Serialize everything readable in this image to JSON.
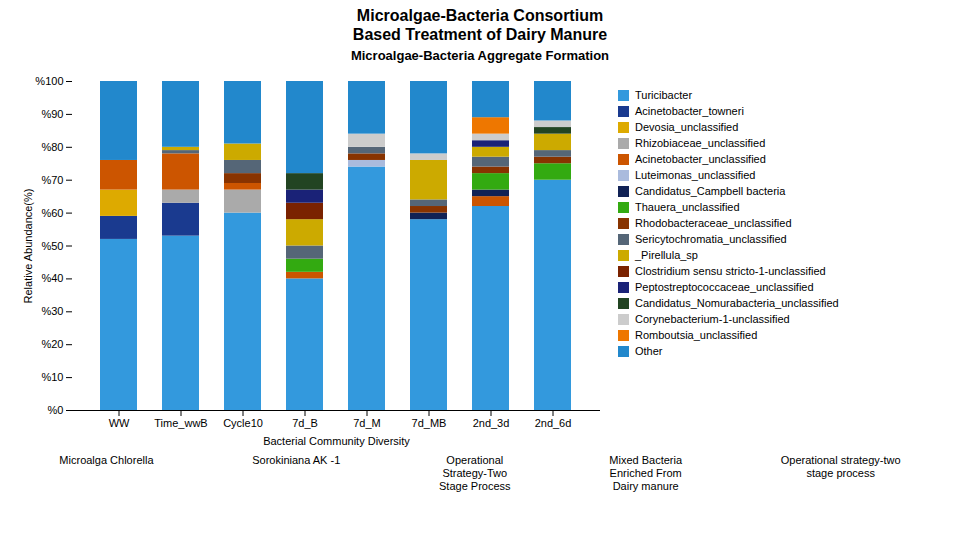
{
  "chart_data": {
    "type": "bar",
    "stacked": true,
    "title": "Microalgae-Bacteria Consortium\nBased Treatment of Dairy Manure",
    "subtitle": "Microalgae-Bacteria Aggregate Formation",
    "x_label": "Bacterial Community Diversity",
    "y_label": "Relative Abundance(%)",
    "categories": [
      "WW",
      "Time_wwB",
      "Cycle10",
      "7d_B",
      "7d_M",
      "7d_MB",
      "2nd_3d",
      "2nd_6d"
    ],
    "series": [
      {
        "name": "Turicibacter",
        "color": "#3399dd",
        "values": [
          52,
          53,
          60,
          40,
          74,
          58,
          62,
          70
        ]
      },
      {
        "name": "Acinetobacter_towneri",
        "color": "#1a3a8f",
        "values": [
          7,
          10,
          0,
          0,
          0,
          0,
          0,
          0
        ]
      },
      {
        "name": "Devosia_unclassified",
        "color": "#ddaa00",
        "values": [
          8,
          0,
          0,
          0,
          0,
          0,
          0,
          0
        ]
      },
      {
        "name": "Rhizobiaceae_unclassified",
        "color": "#aaaaaa",
        "values": [
          0,
          4,
          7,
          0,
          0,
          0,
          0,
          0
        ]
      },
      {
        "name": "Acinetobacter_unclassified",
        "color": "#cc5500",
        "values": [
          9,
          11,
          2,
          2,
          0,
          0,
          3,
          0
        ]
      },
      {
        "name": "Luteimonas_unclassified",
        "color": "#aabbdd",
        "values": [
          0,
          0,
          0,
          0,
          2,
          0,
          0,
          0
        ]
      },
      {
        "name": "Candidatus_Campbell bacteria",
        "color": "#112255",
        "values": [
          0,
          0,
          0,
          0,
          0,
          2,
          2,
          0
        ]
      },
      {
        "name": "Thauera_unclassified",
        "color": "#33aa11",
        "values": [
          0,
          0,
          0,
          4,
          0,
          0,
          5,
          5
        ]
      },
      {
        "name": "Rhodobacteraceae_unclassified",
        "color": "#883300",
        "values": [
          0,
          0,
          3,
          0,
          2,
          2,
          2,
          2
        ]
      },
      {
        "name": "Sericytochromatia_unclassified",
        "color": "#556677",
        "values": [
          0,
          1,
          4,
          4,
          2,
          2,
          3,
          2
        ]
      },
      {
        "name": "_Pirellula_sp",
        "color": "#ccaa00",
        "values": [
          0,
          1,
          5,
          8,
          0,
          12,
          3,
          5
        ]
      },
      {
        "name": "Clostridium sensu stricto-1-unclassified",
        "color": "#7a2200",
        "values": [
          0,
          0,
          0,
          5,
          0,
          0,
          0,
          0
        ]
      },
      {
        "name": "Peptostreptococcaceae_unclassified",
        "color": "#1a2277",
        "values": [
          0,
          0,
          0,
          4,
          0,
          0,
          2,
          0
        ]
      },
      {
        "name": "Candidatus_Nomurabacteria_unclassified",
        "color": "#224422",
        "values": [
          0,
          0,
          0,
          5,
          0,
          0,
          0,
          2
        ]
      },
      {
        "name": "Corynebacterium-1-unclassified",
        "color": "#cccccc",
        "values": [
          0,
          0,
          0,
          0,
          4,
          2,
          2,
          2
        ]
      },
      {
        "name": "Romboutsia_unclassified",
        "color": "#ee7700",
        "values": [
          0,
          0,
          0,
          0,
          0,
          0,
          5,
          0
        ]
      },
      {
        "name": "Other",
        "color": "#2288cc",
        "values": [
          24,
          20,
          19,
          28,
          16,
          22,
          11,
          12
        ]
      }
    ],
    "ylim": [
      0,
      100
    ],
    "yticks": [
      {
        "value": 0,
        "label": "%0"
      },
      {
        "value": 10,
        "label": "%10"
      },
      {
        "value": 20,
        "label": "%20"
      },
      {
        "value": 30,
        "label": "%30"
      },
      {
        "value": 40,
        "label": "%40"
      },
      {
        "value": 50,
        "label": "%50"
      },
      {
        "value": 60,
        "label": "%60"
      },
      {
        "value": 70,
        "label": "%70"
      },
      {
        "value": 80,
        "label": "%80"
      },
      {
        "value": 90,
        "label": "%90"
      },
      {
        "value": 100,
        "label": "%100"
      }
    ],
    "grid": false,
    "legend": "right",
    "annotations": [
      "Microalga Chlorella",
      "Sorokiniana AK -1",
      "Operational\nStrategy-Two\nStage Process",
      "Mixed Bacteria\nEnriched From\nDairy manure",
      "Operational strategy-two\nstage process"
    ]
  }
}
